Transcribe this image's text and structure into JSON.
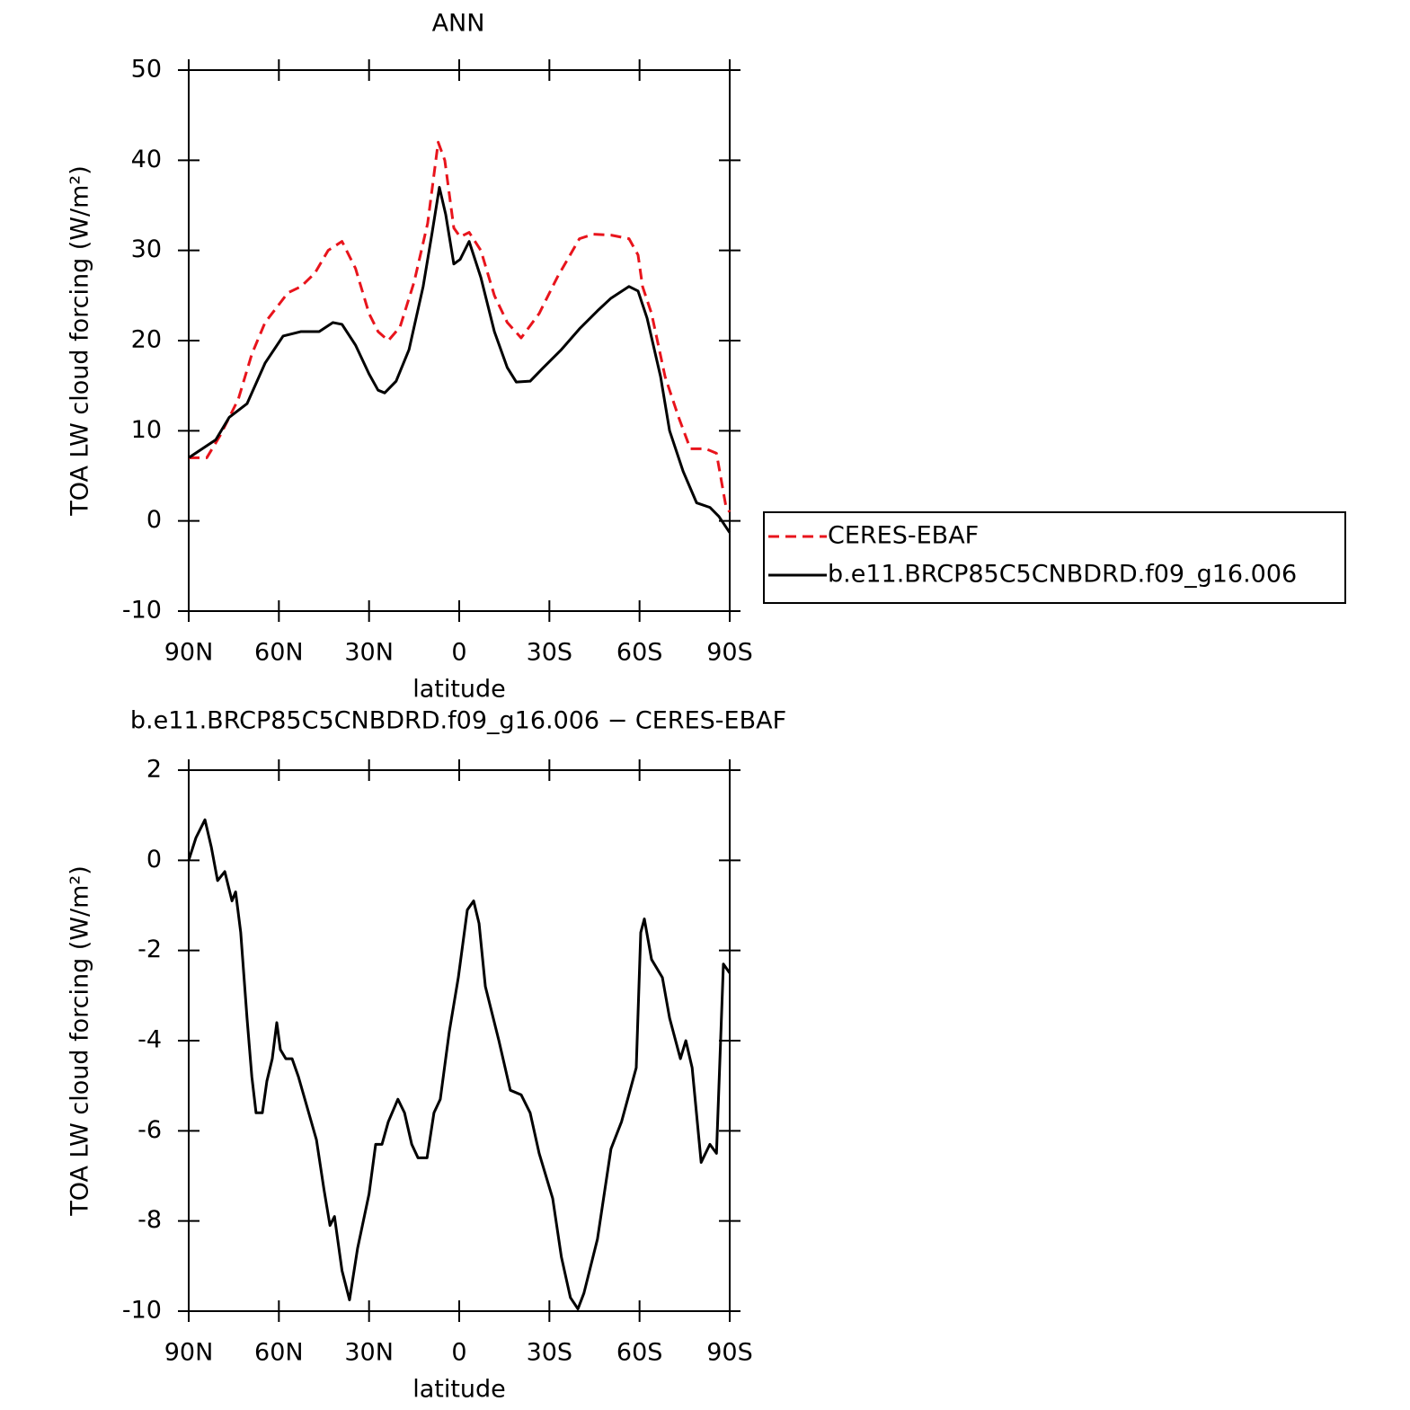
{
  "chart_data": [
    {
      "type": "line",
      "title": "ANN",
      "xlabel": "latitude",
      "ylabel": "TOA LW cloud forcing (W/m²)",
      "xlim": [
        90,
        -90
      ],
      "xticks": [
        {
          "value": 90,
          "label": "90N"
        },
        {
          "value": 60,
          "label": "60N"
        },
        {
          "value": 30,
          "label": "30N"
        },
        0,
        {
          "value": -30,
          "label": "30S"
        },
        {
          "value": -60,
          "label": "60S"
        },
        {
          "value": -90,
          "label": "90S"
        }
      ],
      "ylim": [
        -10,
        50
      ],
      "yticks": [
        -10,
        0,
        10,
        20,
        30,
        40,
        50
      ],
      "legend": "right",
      "series": [
        {
          "name": "CERES-EBAF",
          "color": "#e8141c",
          "style": "dashed",
          "x": [
            90,
            84,
            79.5,
            73.5,
            69,
            64.6,
            57,
            52.6,
            48,
            43.6,
            39,
            34.5,
            30,
            27,
            23.6,
            19.7,
            15,
            10.5,
            7,
            4.8,
            1.8,
            -0.3,
            -3.3,
            -7.2,
            -11.7,
            -16,
            -20.6,
            -26.6,
            -32.6,
            -40,
            -44.6,
            -50.5,
            -56.5,
            -59.5,
            -61,
            -64,
            -68.5,
            -73,
            -76.9,
            -80,
            -82,
            -85.6,
            -88.8,
            -90
          ],
          "values": [
            7,
            7,
            9.5,
            13.5,
            18.5,
            22,
            25.3,
            26,
            27.5,
            30,
            31,
            28,
            23,
            21,
            20,
            21.5,
            26.5,
            33,
            42,
            40,
            32.5,
            31.5,
            32,
            30,
            25,
            22,
            20.3,
            23,
            27,
            31.3,
            31.8,
            31.7,
            31.3,
            29.5,
            26,
            23,
            16,
            11.5,
            8,
            8,
            8,
            7.5,
            1.5,
            1
          ]
        },
        {
          "name": "b.e11.BRCP85C5CNBDRD.f09_g16.006",
          "color": "#000000",
          "style": "solid",
          "x": [
            90,
            85.5,
            81,
            76.5,
            70.6,
            64.6,
            58.6,
            52.6,
            46.6,
            42,
            39,
            34.5,
            30,
            27,
            24.8,
            21,
            16.7,
            12,
            9,
            6.6,
            4.5,
            1.8,
            -0.3,
            -3.3,
            -7.2,
            -11.7,
            -16,
            -19,
            -23.6,
            -28,
            -34,
            -40,
            -46,
            -50.5,
            -56.5,
            -59.5,
            -62.5,
            -67,
            -70,
            -74.5,
            -79,
            -83.4,
            -86.4,
            -90
          ],
          "values": [
            7,
            8,
            9,
            11.5,
            13,
            17.5,
            20.5,
            21,
            21,
            22,
            21.8,
            19.5,
            16.3,
            14.5,
            14.2,
            15.5,
            19,
            26,
            32,
            37,
            34,
            28.5,
            29,
            31,
            27,
            21,
            17,
            15.4,
            15.5,
            17,
            19,
            21.3,
            23.3,
            24.7,
            26,
            25.5,
            22.5,
            16,
            10,
            5.5,
            2,
            1.5,
            0.5,
            -1.3
          ]
        }
      ]
    },
    {
      "type": "line",
      "title": "b.e11.BRCP85C5CNBDRD.f09_g16.006 − CERES-EBAF",
      "xlabel": "latitude",
      "ylabel": "TOA LW cloud forcing (W/m²)",
      "xlim": [
        90,
        -90
      ],
      "xticks": [
        {
          "value": 90,
          "label": "90N"
        },
        {
          "value": 60,
          "label": "60N"
        },
        {
          "value": 30,
          "label": "30N"
        },
        0,
        {
          "value": -30,
          "label": "30S"
        },
        {
          "value": -60,
          "label": "60S"
        },
        {
          "value": -90,
          "label": "90S"
        }
      ],
      "ylim": [
        -10,
        2
      ],
      "yticks": [
        -10,
        -8,
        -6,
        -4,
        -2,
        0,
        2
      ],
      "series": [
        {
          "color": "#000000",
          "style": "solid",
          "x": [
            90,
            87.6,
            84.6,
            82.5,
            80.4,
            78,
            75.6,
            74.4,
            72.7,
            70.6,
            69,
            67.6,
            65.5,
            64,
            62.2,
            60.7,
            59.5,
            57.7,
            55.6,
            53.5,
            50.5,
            47.5,
            45,
            43,
            41.5,
            39,
            36.5,
            33.8,
            30,
            27.8,
            25.7,
            23.6,
            20.4,
            18.2,
            15.8,
            13.7,
            10.7,
            8.4,
            6.3,
            3.3,
            0.3,
            -2.7,
            -4.8,
            -6.6,
            -8.7,
            -13.2,
            -17,
            -20.6,
            -23.6,
            -26.6,
            -31.1,
            -34,
            -37,
            -39.5,
            -41.5,
            -46,
            -50.5,
            -54,
            -58.9,
            -60.4,
            -61.6,
            -64,
            -67.6,
            -70,
            -73.6,
            -75.4,
            -77.5,
            -80.5,
            -83.4,
            -85.6,
            -87.9,
            -90
          ],
          "values": [
            0,
            0.5,
            0.9,
            0.3,
            -0.45,
            -0.25,
            -0.9,
            -0.7,
            -1.6,
            -3.5,
            -4.8,
            -5.6,
            -5.6,
            -4.9,
            -4.4,
            -3.6,
            -4.2,
            -4.4,
            -4.4,
            -4.8,
            -5.5,
            -6.2,
            -7.3,
            -8.1,
            -7.9,
            -9.1,
            -9.75,
            -8.6,
            -7.4,
            -6.3,
            -6.3,
            -5.8,
            -5.3,
            -5.6,
            -6.3,
            -6.6,
            -6.6,
            -5.6,
            -5.3,
            -3.8,
            -2.6,
            -1.1,
            -0.9,
            -1.4,
            -2.8,
            -4,
            -5.1,
            -5.2,
            -5.6,
            -6.5,
            -7.5,
            -8.8,
            -9.7,
            -9.95,
            -9.6,
            -8.4,
            -6.4,
            -5.8,
            -4.6,
            -1.6,
            -1.3,
            -2.2,
            -2.6,
            -3.5,
            -4.4,
            -4,
            -4.6,
            -6.7,
            -6.3,
            -6.5,
            -2.3,
            -2.5
          ]
        }
      ]
    }
  ]
}
